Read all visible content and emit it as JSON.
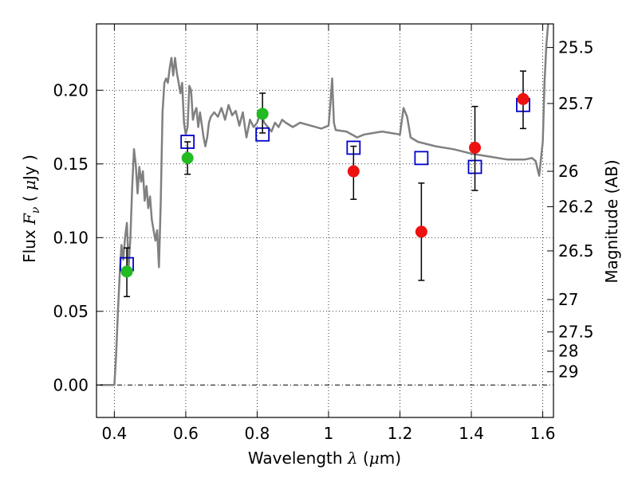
{
  "chart_data": {
    "type": "scatter",
    "xlabel": "Wavelength λ (μm)",
    "ylabel": "Flux F_ν (μJy)",
    "y2label": "Magnitude (AB)",
    "xlim": [
      0.35,
      1.63
    ],
    "ylim": [
      -0.022,
      0.245
    ],
    "grid": true,
    "xticks": [
      0.4,
      0.6,
      0.8,
      1.0,
      1.2,
      1.4,
      1.6
    ],
    "xtick_labels": [
      "0.4",
      "0.6",
      "0.8",
      "1",
      "1.2",
      "1.4",
      "1.6"
    ],
    "yticks": [
      0.0,
      0.05,
      0.1,
      0.15,
      0.2
    ],
    "ytick_labels": [
      "0.00",
      "0.05",
      "0.10",
      "0.15",
      "0.20"
    ],
    "mag_ticks": [
      {
        "label": "25.5",
        "flux": 0.229
      },
      {
        "label": "25.7",
        "flux": 0.191
      },
      {
        "label": "26",
        "flux": 0.145
      },
      {
        "label": "26.2",
        "flux": 0.121
      },
      {
        "label": "26.5",
        "flux": 0.091
      },
      {
        "label": "27",
        "flux": 0.058
      },
      {
        "label": "27.5",
        "flux": 0.036
      },
      {
        "label": "28",
        "flux": 0.023
      },
      {
        "label": "29",
        "flux": 0.009
      }
    ],
    "series": [
      {
        "kind": "line",
        "color": "#808080",
        "x": [
          0.36,
          0.38,
          0.39,
          0.4,
          0.405,
          0.41,
          0.415,
          0.42,
          0.425,
          0.43,
          0.435,
          0.44,
          0.445,
          0.45,
          0.455,
          0.46,
          0.465,
          0.47,
          0.475,
          0.48,
          0.485,
          0.49,
          0.495,
          0.5,
          0.505,
          0.51,
          0.515,
          0.52,
          0.525,
          0.53,
          0.535,
          0.54,
          0.545,
          0.55,
          0.555,
          0.56,
          0.565,
          0.57,
          0.575,
          0.58,
          0.585,
          0.59,
          0.595,
          0.6,
          0.605,
          0.61,
          0.615,
          0.62,
          0.625,
          0.63,
          0.635,
          0.64,
          0.65,
          0.655,
          0.66,
          0.665,
          0.67,
          0.68,
          0.69,
          0.7,
          0.71,
          0.72,
          0.73,
          0.74,
          0.75,
          0.76,
          0.77,
          0.78,
          0.79,
          0.8,
          0.81,
          0.82,
          0.83,
          0.84,
          0.85,
          0.86,
          0.87,
          0.88,
          0.9,
          0.92,
          0.95,
          0.98,
          1.0,
          1.005,
          1.01,
          1.015,
          1.02,
          1.05,
          1.08,
          1.1,
          1.15,
          1.2,
          1.21,
          1.22,
          1.23,
          1.25,
          1.3,
          1.35,
          1.4,
          1.45,
          1.5,
          1.55,
          1.57,
          1.58,
          1.59,
          1.6,
          1.605,
          1.61,
          1.615
        ],
        "y": [
          0.0,
          0.0,
          0.0,
          0.0,
          0.02,
          0.05,
          0.075,
          0.095,
          0.085,
          0.1,
          0.11,
          0.08,
          0.1,
          0.135,
          0.16,
          0.15,
          0.13,
          0.148,
          0.138,
          0.145,
          0.125,
          0.135,
          0.12,
          0.128,
          0.112,
          0.105,
          0.098,
          0.105,
          0.08,
          0.125,
          0.185,
          0.205,
          0.208,
          0.205,
          0.215,
          0.222,
          0.21,
          0.222,
          0.212,
          0.205,
          0.198,
          0.205,
          0.178,
          0.17,
          0.175,
          0.203,
          0.2,
          0.18,
          0.185,
          0.188,
          0.175,
          0.185,
          0.168,
          0.162,
          0.168,
          0.178,
          0.182,
          0.185,
          0.182,
          0.188,
          0.18,
          0.19,
          0.183,
          0.186,
          0.176,
          0.185,
          0.168,
          0.18,
          0.175,
          0.178,
          0.185,
          0.178,
          0.175,
          0.172,
          0.178,
          0.175,
          0.18,
          0.178,
          0.175,
          0.178,
          0.176,
          0.174,
          0.176,
          0.19,
          0.208,
          0.178,
          0.173,
          0.172,
          0.168,
          0.17,
          0.172,
          0.17,
          0.188,
          0.182,
          0.168,
          0.165,
          0.162,
          0.16,
          0.157,
          0.155,
          0.153,
          0.153,
          0.154,
          0.152,
          0.142,
          0.165,
          0.205,
          0.23,
          0.245
        ]
      },
      {
        "kind": "open-square",
        "color": "#0000cc",
        "x": [
          0.435,
          0.605,
          0.815,
          1.07,
          1.26,
          1.41,
          1.545
        ],
        "y": [
          0.082,
          0.165,
          0.17,
          0.161,
          0.154,
          0.148,
          0.19
        ]
      },
      {
        "kind": "filled-circle",
        "color": "#22bb22",
        "x": [
          0.435,
          0.605,
          0.815
        ],
        "y": [
          0.077,
          0.154,
          0.184
        ]
      },
      {
        "kind": "filled-circle",
        "color": "#ee1111",
        "x": [
          1.07,
          1.26,
          1.41,
          1.545
        ],
        "y": [
          0.145,
          0.104,
          0.161,
          0.194
        ]
      },
      {
        "kind": "errorbar",
        "color": "#000000",
        "bars": [
          {
            "x": 0.435,
            "lo": 0.06,
            "hi": 0.093
          },
          {
            "x": 0.605,
            "lo": 0.143,
            "hi": 0.165
          },
          {
            "x": 0.815,
            "lo": 0.171,
            "hi": 0.198
          },
          {
            "x": 1.07,
            "lo": 0.126,
            "hi": 0.162
          },
          {
            "x": 1.26,
            "lo": 0.071,
            "hi": 0.137
          },
          {
            "x": 1.41,
            "lo": 0.132,
            "hi": 0.189
          },
          {
            "x": 1.545,
            "lo": 0.174,
            "hi": 0.213
          }
        ]
      }
    ]
  }
}
